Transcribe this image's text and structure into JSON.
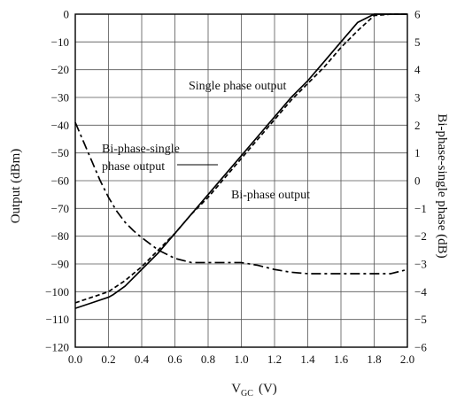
{
  "chart_data": {
    "type": "line",
    "xlabel_main": "V",
    "xlabel_sub": "GC",
    "xlabel_unit": "(V)",
    "ylabel": "Output (dBm)",
    "y2label": "Bi-phase-single phase (dB)",
    "xlim": [
      0.0,
      2.0
    ],
    "ylim": [
      -120,
      0
    ],
    "y2lim": [
      -6,
      6
    ],
    "x_ticks": [
      "0.0",
      "0.2",
      "0.4",
      "0.6",
      "0.8",
      "1.0",
      "1.2",
      "1.4",
      "1.6",
      "1.8",
      "2.0"
    ],
    "y_ticks": [
      "0",
      "−10",
      "−20",
      "−30",
      "−40",
      "−50",
      "−60",
      "−70",
      "−80",
      "−90",
      "−100",
      "−110",
      "−120"
    ],
    "y2_ticks": [
      "6",
      "5",
      "4",
      "3",
      "2",
      "1",
      "0",
      "−1",
      "−2",
      "−3",
      "−4",
      "−5",
      "−6"
    ],
    "grid": true,
    "series": [
      {
        "name": "Single phase output",
        "axis": "left",
        "style": "solid",
        "x": [
          0.0,
          0.1,
          0.2,
          0.23,
          0.3,
          0.4,
          0.5,
          0.6,
          0.7,
          0.8,
          0.9,
          1.0,
          1.1,
          1.2,
          1.3,
          1.4,
          1.5,
          1.6,
          1.7,
          1.8,
          1.9,
          2.0
        ],
        "y": [
          -106,
          -104,
          -102,
          -101,
          -98,
          -92,
          -86,
          -79,
          -72,
          -65,
          -58,
          -51,
          -44,
          -37,
          -30,
          -24,
          -17,
          -10,
          -3,
          4,
          5,
          6
        ]
      },
      {
        "name": "Bi-phase output",
        "axis": "left",
        "style": "dashed",
        "x": [
          0.0,
          0.1,
          0.2,
          0.3,
          0.4,
          0.5,
          0.6,
          0.7,
          0.8,
          0.9,
          1.0,
          1.1,
          1.2,
          1.3,
          1.4,
          1.5,
          1.6,
          1.7,
          1.8,
          1.9,
          2.0
        ],
        "y": [
          -104,
          -102,
          -100,
          -96,
          -91,
          -85,
          -79,
          -72,
          -66,
          -59,
          -52,
          -45,
          -38,
          -31,
          -25,
          -19,
          -12,
          -6,
          -0.5,
          2.5,
          5
        ]
      },
      {
        "name": "Bi-phase-single phase output",
        "axis": "right",
        "style": "dashdot",
        "x": [
          0.0,
          0.05,
          0.1,
          0.15,
          0.2,
          0.25,
          0.3,
          0.35,
          0.4,
          0.5,
          0.6,
          0.7,
          0.8,
          0.9,
          1.0,
          1.1,
          1.2,
          1.3,
          1.4,
          1.5,
          1.6,
          1.7,
          1.8,
          1.9,
          2.0
        ],
        "y": [
          2.1,
          1.4,
          0.7,
          0.0,
          -0.6,
          -1.1,
          -1.5,
          -1.8,
          -2.05,
          -2.5,
          -2.8,
          -2.95,
          -2.95,
          -2.95,
          -2.95,
          -3.05,
          -3.2,
          -3.3,
          -3.35,
          -3.35,
          -3.35,
          -3.35,
          -3.35,
          -3.35,
          -3.2
        ]
      }
    ],
    "annotations": [
      "Single phase output",
      "Bi-phase output",
      "Bi-phase-single",
      "phase output"
    ]
  }
}
